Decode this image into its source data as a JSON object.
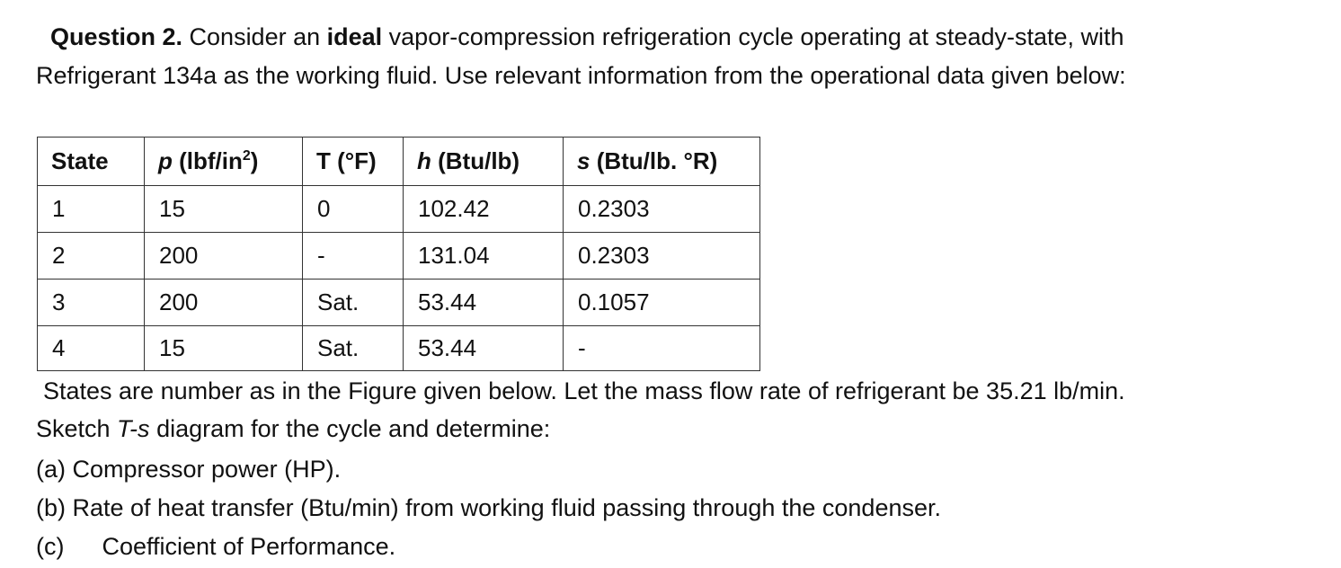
{
  "question": {
    "label": "Question 2.",
    "text_before": " Consider an ",
    "emphasis": "ideal",
    "text_after": " vapor-compression refrigeration cycle operating at steady-state, with",
    "line2": "Refrigerant 134a as the working fluid. Use relevant information from the operational data given below:"
  },
  "table": {
    "headers": {
      "state": "State",
      "p_sym": "p",
      "p_unit_a": " (lbf/in",
      "p_sup": "2",
      "p_unit_b": ")",
      "t": "T (°F)",
      "h_sym": "h",
      "h_unit": " (Btu/lb)",
      "s_sym": "s",
      "s_unit": " (Btu/lb. °R)"
    },
    "rows": [
      {
        "state": "1",
        "p": "15",
        "t": "0",
        "h": "102.42",
        "s": "0.2303"
      },
      {
        "state": "2",
        "p": "200",
        "t": "-",
        "h": "131.04",
        "s": "0.2303"
      },
      {
        "state": "3",
        "p": "200",
        "t": "Sat.",
        "h": "53.44",
        "s": "0.1057"
      },
      {
        "state": "4",
        "p": "15",
        "t": "Sat.",
        "h": "53.44",
        "s": "-"
      }
    ]
  },
  "after": {
    "line1": "States are number as in the Figure given below. Let the mass flow rate of refrigerant be 35.21 lb/min.",
    "line2_before": "Sketch ",
    "line2_em": "T-s",
    "line2_after": " diagram for the cycle and determine:"
  },
  "parts": {
    "a": "(a) Compressor power (HP).",
    "b": "(b) Rate of heat transfer (Btu/min) from working fluid passing through the condenser.",
    "c_label": "(c)",
    "c_text": "Coefficient of Performance."
  }
}
